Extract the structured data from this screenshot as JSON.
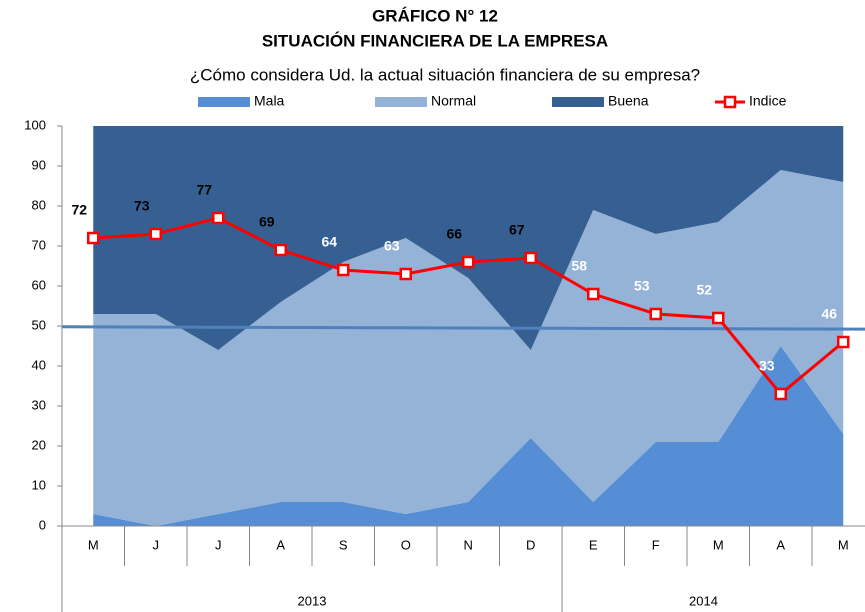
{
  "chart_data": {
    "type": "stacked-area-line",
    "title": "GRÁFICO N° 12",
    "title2": "SITUACIÓN FINANCIERA DE LA EMPRESA",
    "subtitle": "¿Cómo considera Ud. la actual situación financiera de su empresa?",
    "categories": [
      "M",
      "J",
      "J",
      "A",
      "S",
      "O",
      "N",
      "D",
      "E",
      "F",
      "M",
      "A",
      "M"
    ],
    "groups": [
      {
        "label": "2013",
        "span": 8
      },
      {
        "label": "2014",
        "span": 5
      }
    ],
    "series": [
      {
        "name": "Mala",
        "color": "#558ed5",
        "kind": "area",
        "values": [
          3,
          0,
          3,
          6,
          6,
          3,
          6,
          22,
          6,
          21,
          21,
          45,
          23
        ]
      },
      {
        "name": "Normal",
        "color": "#95b3d7",
        "kind": "area",
        "values": [
          50,
          53,
          41,
          50,
          60,
          69,
          56,
          22,
          73,
          52,
          55,
          44,
          63
        ]
      },
      {
        "name": "Buena",
        "color": "#376092",
        "kind": "area",
        "values": [
          47,
          47,
          56,
          44,
          34,
          28,
          38,
          56,
          21,
          27,
          24,
          11,
          14
        ]
      },
      {
        "name": "Indice",
        "color": "#ff0000",
        "kind": "line",
        "values": [
          72,
          73,
          77,
          69,
          64,
          63,
          66,
          67,
          58,
          53,
          52,
          33,
          46
        ],
        "label_colors": [
          "#000",
          "#000",
          "#000",
          "#000",
          "#fff",
          "#fff",
          "#000",
          "#000",
          "#fff",
          "#fff",
          "#fff",
          "#fff",
          "#fff"
        ]
      }
    ],
    "trend": {
      "color": "#4f81bd",
      "values": [
        49.8,
        49.2
      ]
    },
    "ylim": [
      0,
      100
    ],
    "yticks": [
      0,
      10,
      20,
      30,
      40,
      50,
      60,
      70,
      80,
      90,
      100
    ]
  }
}
